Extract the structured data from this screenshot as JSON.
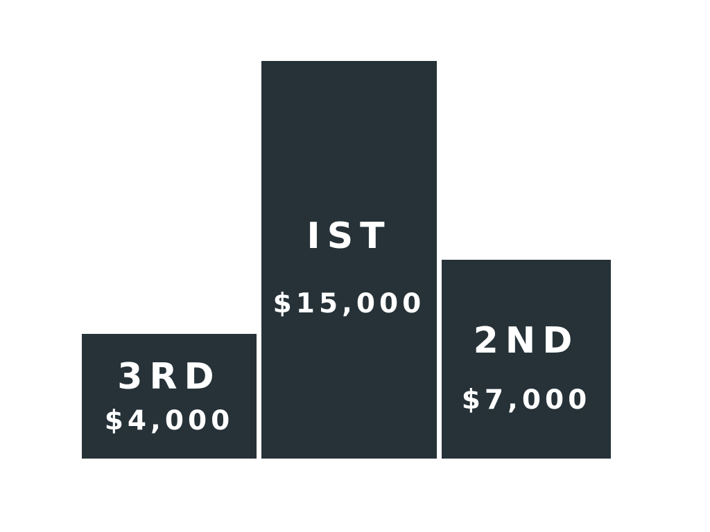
{
  "podium": {
    "block_color": "#263238",
    "text_color": "#ffffff",
    "first": {
      "place": "IST",
      "amount": "$15,000"
    },
    "second": {
      "place": "2ND",
      "amount": "$7,000"
    },
    "third": {
      "place": "3RD",
      "amount": "$4,000"
    }
  }
}
